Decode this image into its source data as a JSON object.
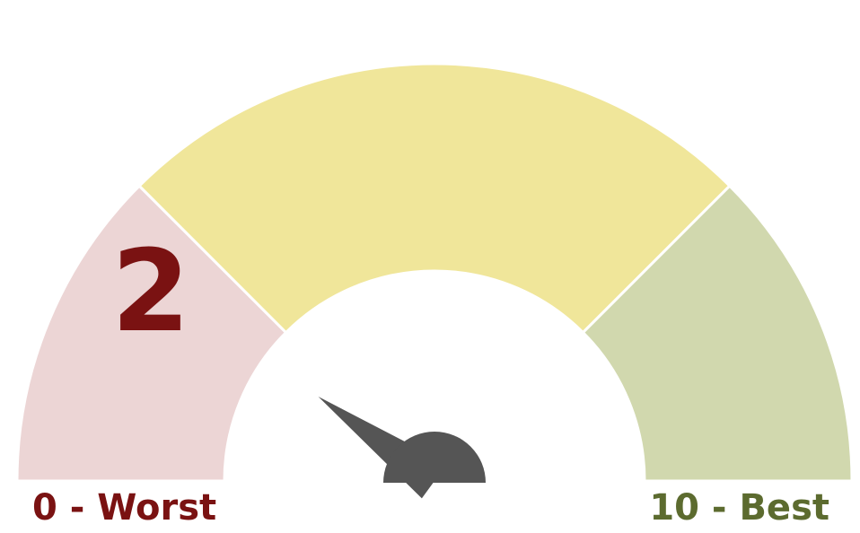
{
  "gauge": {
    "value": "2",
    "value_number": 2,
    "min": 0,
    "max": 10,
    "min_label": "0 - Worst",
    "max_label": "10 - Best",
    "bands": [
      {
        "from": 0,
        "to": 2.5,
        "color": "#ecd5d5"
      },
      {
        "from": 2.5,
        "to": 7.5,
        "color": "#f0e69a"
      },
      {
        "from": 7.5,
        "to": 10,
        "color": "#d1d8ae"
      }
    ],
    "needle_color": "#555555",
    "value_color": "#7a1212",
    "max_label_color": "#5c6b2f"
  }
}
